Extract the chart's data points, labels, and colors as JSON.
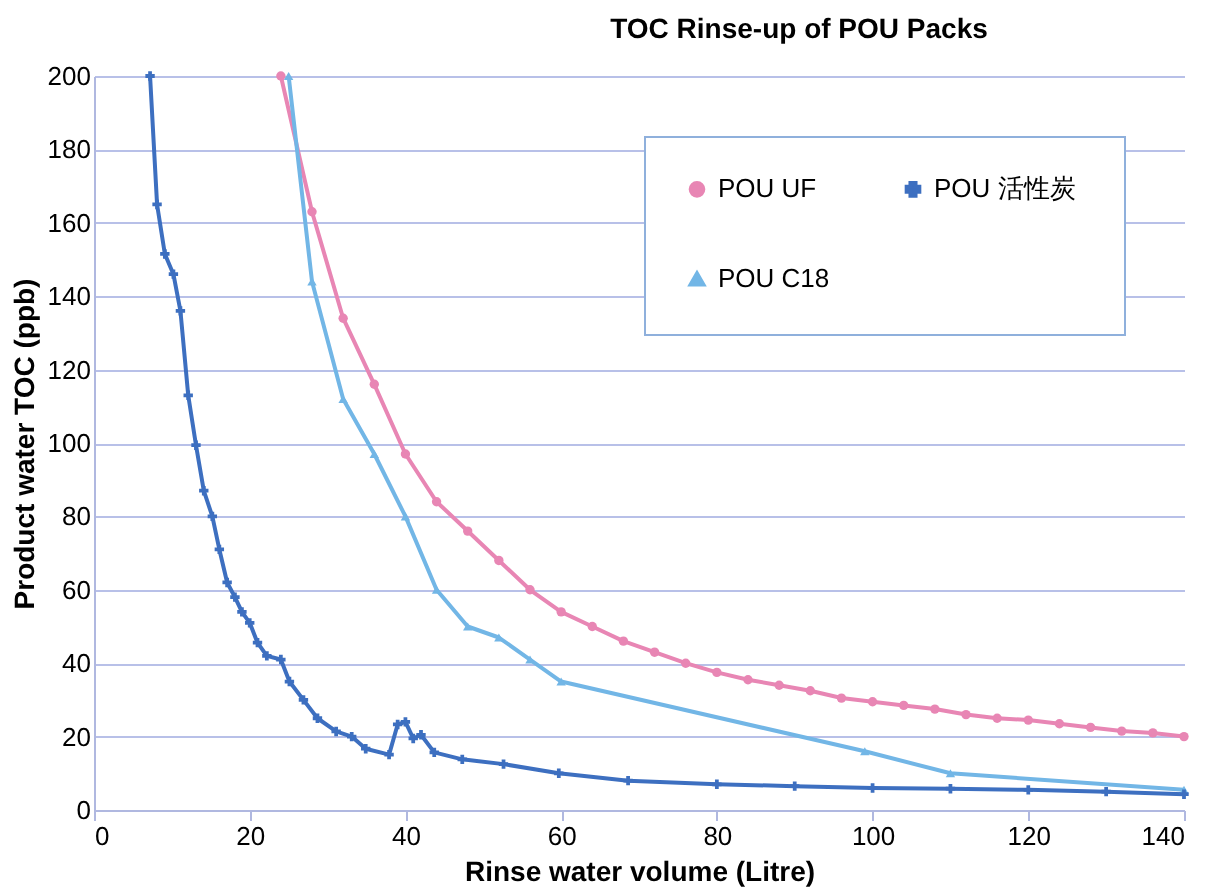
{
  "chart_data": {
    "type": "line",
    "title": "TOC Rinse-up of POU Packs",
    "xlabel": "Rinse water volume (Litre)",
    "ylabel": "Product water TOC (ppb)",
    "xlim": [
      0,
      140
    ],
    "xticks": [
      0,
      20,
      40,
      60,
      80,
      100,
      120,
      140
    ],
    "ylim": [
      0,
      200
    ],
    "yticks": [
      0,
      20,
      40,
      60,
      80,
      100,
      120,
      140,
      160,
      180,
      200
    ],
    "grid": "y",
    "legend": "top right",
    "line_style": "solid",
    "series": [
      {
        "name": "POU  UF",
        "color": "#e886b4",
        "marker": "circle",
        "x": [
          24,
          28,
          32,
          36,
          40,
          44,
          48,
          52,
          56,
          60,
          64,
          68,
          72,
          76,
          80,
          84,
          88,
          92,
          96,
          100,
          104,
          108,
          112,
          116,
          120,
          124,
          128,
          132,
          136,
          140
        ],
        "values": [
          200,
          163,
          134,
          116,
          97,
          84,
          76,
          68,
          60,
          54,
          50,
          46,
          43,
          40,
          37.5,
          35.5,
          34,
          32.5,
          30.5,
          29.5,
          28.5,
          27.5,
          26,
          25,
          24.5,
          23.5,
          22.5,
          21.5,
          21,
          20
        ]
      },
      {
        "name": "POU  C18",
        "color": "#72b6e6",
        "marker": "triangle",
        "x": [
          25,
          28,
          32,
          36,
          40,
          44,
          48,
          52,
          56,
          60,
          99,
          110,
          140
        ],
        "values": [
          200,
          144,
          112,
          97,
          80,
          60,
          50,
          47,
          41,
          35,
          16,
          10,
          5.5
        ]
      },
      {
        "name": "POU  活性炭",
        "color": "#3d6fc0",
        "marker": "cross",
        "x": [
          7.2,
          8.1,
          9.1,
          10.2,
          11.1,
          12.1,
          13.1,
          14.1,
          15.2,
          16.1,
          17.1,
          18.1,
          19,
          20,
          21,
          22.2,
          24,
          25.1,
          26.9,
          28.7,
          31.1,
          33.1,
          34.9,
          37.9,
          39,
          40,
          41,
          42,
          43.7,
          47.3,
          52.6,
          59.7,
          68.6,
          80,
          90,
          100,
          110,
          120,
          130,
          140
        ],
        "values": [
          200,
          165,
          151.5,
          146,
          136,
          113,
          99.4,
          87,
          80,
          71,
          62,
          58,
          54,
          51,
          45.6,
          42,
          41,
          35,
          30,
          25,
          21.4,
          20,
          16.7,
          15.1,
          23.3,
          24,
          19.5,
          20.5,
          15.7,
          13.8,
          12.5,
          10,
          8,
          7,
          6.5,
          6,
          5.8,
          5.5,
          5,
          4.3
        ]
      }
    ]
  }
}
